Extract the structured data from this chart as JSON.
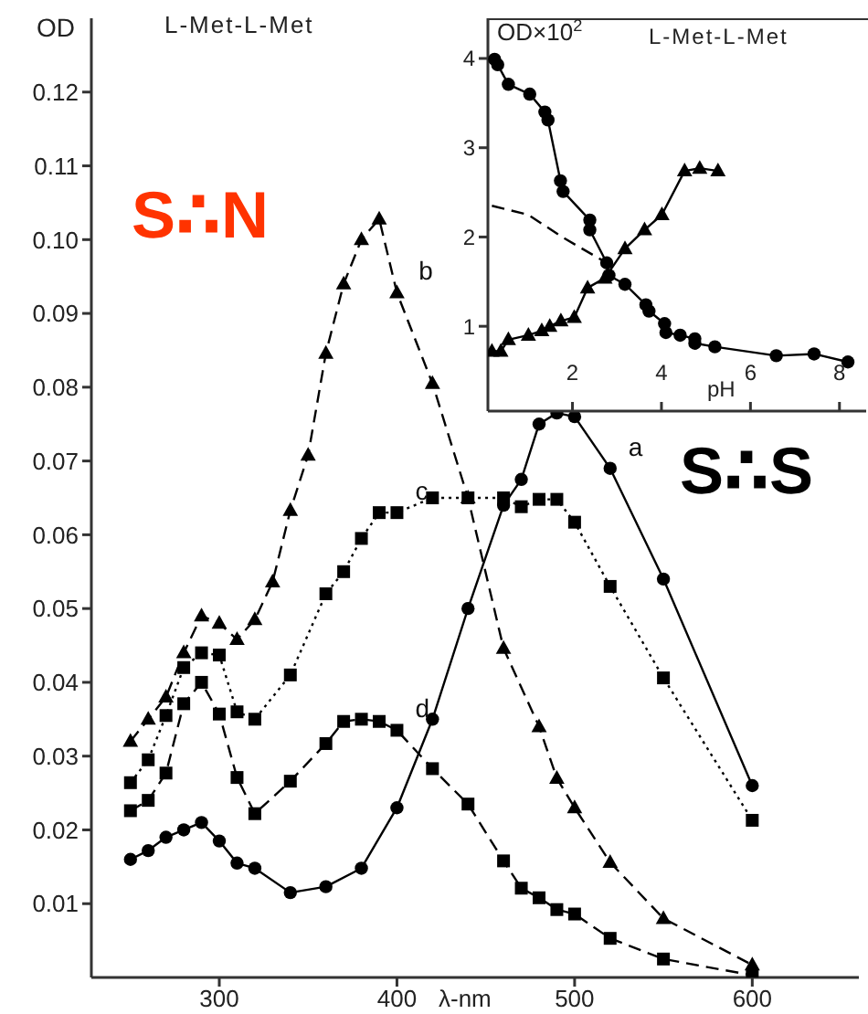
{
  "chart_data": [
    {
      "type": "line",
      "title": "L-Met-L-Met",
      "xlabel": "λ-nm",
      "ylabel": "OD",
      "xlim": [
        228,
        660
      ],
      "xticks": [
        300,
        400,
        500,
        600
      ],
      "ylim": [
        0,
        0.13
      ],
      "yticks": [
        0.01,
        0.02,
        0.03,
        0.04,
        0.05,
        0.06,
        0.07,
        0.08,
        0.09,
        {
          "value": 0.1,
          "label": "0.10"
        },
        0.11,
        0.12
      ],
      "annotations": [
        "S∴N",
        "S∴S",
        {
          "text": "a",
          "x": 520,
          "y": 0.069
        },
        {
          "text": "b",
          "x": 402,
          "y": 0.0928
        },
        {
          "text": "c",
          "x": 400,
          "y": 0.063
        },
        {
          "text": "d",
          "x": 400,
          "y": 0.0335
        }
      ],
      "series": [
        {
          "color": "#000000",
          "marker": "circle",
          "line_style": "solid",
          "x": [
            250,
            260,
            270,
            280,
            290,
            300,
            310,
            320,
            340,
            360,
            380,
            400,
            420,
            440,
            460,
            470,
            480,
            490,
            500,
            520,
            550,
            600
          ],
          "values": [
            0.016,
            0.0172,
            0.019,
            0.02,
            0.021,
            0.0185,
            0.0155,
            0.0148,
            0.0115,
            0.0123,
            0.0148,
            0.023,
            0.035,
            0.05,
            0.064,
            0.0675,
            0.075,
            0.0765,
            0.076,
            0.069,
            0.054,
            0.026
          ]
        },
        {
          "color": "#000000",
          "marker": "triangle",
          "line_style": "dashed",
          "x": [
            250,
            260,
            270,
            280,
            290,
            300,
            310,
            320,
            330,
            340,
            350,
            360,
            370,
            380,
            390,
            400,
            420,
            440,
            460,
            480,
            490,
            500,
            520,
            550,
            600
          ],
          "values": [
            0.032,
            0.035,
            0.038,
            0.044,
            0.049,
            0.048,
            0.0458,
            0.0485,
            0.0536,
            0.0633,
            0.0708,
            0.0846,
            0.094,
            0.1,
            0.1028,
            0.0928,
            0.0805,
            0.065,
            0.0446,
            0.034,
            0.027,
            0.023,
            0.0156,
            0.008,
            0.0017
          ]
        },
        {
          "color": "#000000",
          "marker": "square",
          "line_style": "dotted",
          "x": [
            250,
            260,
            270,
            280,
            290,
            300,
            310,
            320,
            340,
            360,
            370,
            380,
            390,
            400,
            420,
            440,
            460,
            470,
            480,
            490,
            500,
            520,
            550,
            600
          ],
          "values": [
            0.0264,
            0.0295,
            0.0355,
            0.042,
            0.044,
            0.0437,
            0.036,
            0.035,
            0.041,
            0.052,
            0.055,
            0.0595,
            0.063,
            0.063,
            0.065,
            0.065,
            0.065,
            0.0638,
            0.0648,
            0.0648,
            0.0617,
            0.053,
            0.0406,
            0.0213
          ]
        },
        {
          "color": "#000000",
          "marker": "square",
          "line_style": "dashed",
          "x": [
            250,
            260,
            270,
            280,
            290,
            300,
            310,
            320,
            340,
            360,
            370,
            380,
            390,
            400,
            420,
            440,
            460,
            470,
            480,
            490,
            500,
            520,
            550,
            600
          ],
          "values": [
            0.0226,
            0.024,
            0.0277,
            0.0371,
            0.04,
            0.0357,
            0.0271,
            0.0222,
            0.0266,
            0.0317,
            0.0347,
            0.035,
            0.0347,
            0.0335,
            0.0283,
            0.0235,
            0.0158,
            0.0121,
            0.0108,
            0.0092,
            0.0086,
            0.0053,
            0.0025,
            0.0003
          ]
        }
      ]
    },
    {
      "type": "line",
      "title": "L-Met-L-Met",
      "xlabel": "pH",
      "ylabel": "OD×10$^{2}$",
      "xlim": [
        0.1,
        8.6
      ],
      "xticks": [
        2,
        4,
        6,
        8
      ],
      "ylim": [
        0.05,
        4.45
      ],
      "yticks": [
        1,
        2,
        3,
        4
      ],
      "series": [
        {
          "color": "#000000",
          "marker": "circle",
          "line_style": "solid",
          "x": [
            0.25,
            0.32,
            0.56,
            1.04,
            1.38,
            1.45,
            1.73,
            1.79,
            2.39,
            2.39,
            2.77,
            2.82,
            3.18,
            3.65,
            3.72,
            4.07,
            4.1,
            4.42,
            4.75,
            4.75,
            5.2,
            6.58,
            7.43,
            8.19
          ],
          "values": [
            3.99,
            3.93,
            3.71,
            3.6,
            3.4,
            3.31,
            2.63,
            2.51,
            2.19,
            2.08,
            1.71,
            1.57,
            1.47,
            1.24,
            1.17,
            1.03,
            0.93,
            0.9,
            0.86,
            0.81,
            0.77,
            0.67,
            0.69,
            0.6
          ]
        },
        {
          "color": "#000000",
          "marker": "triangle",
          "line_style": "solid",
          "x": [
            0.19,
            0.39,
            0.56,
            1.01,
            1.31,
            1.49,
            1.74,
            2.04,
            2.34,
            2.73,
            3.18,
            3.62,
            4.01,
            4.52,
            4.86,
            5.27
          ],
          "values": [
            0.72,
            0.72,
            0.85,
            0.9,
            0.95,
            1.0,
            1.06,
            1.1,
            1.43,
            1.54,
            1.87,
            2.08,
            2.25,
            2.74,
            2.77,
            2.74
          ]
        },
        {
          "color": "#000000",
          "marker": "none",
          "line_style": "dashed",
          "x": [
            0.19,
            1.0,
            1.8,
            2.77
          ],
          "values": [
            2.35,
            2.25,
            1.99,
            1.71
          ]
        }
      ]
    }
  ]
}
